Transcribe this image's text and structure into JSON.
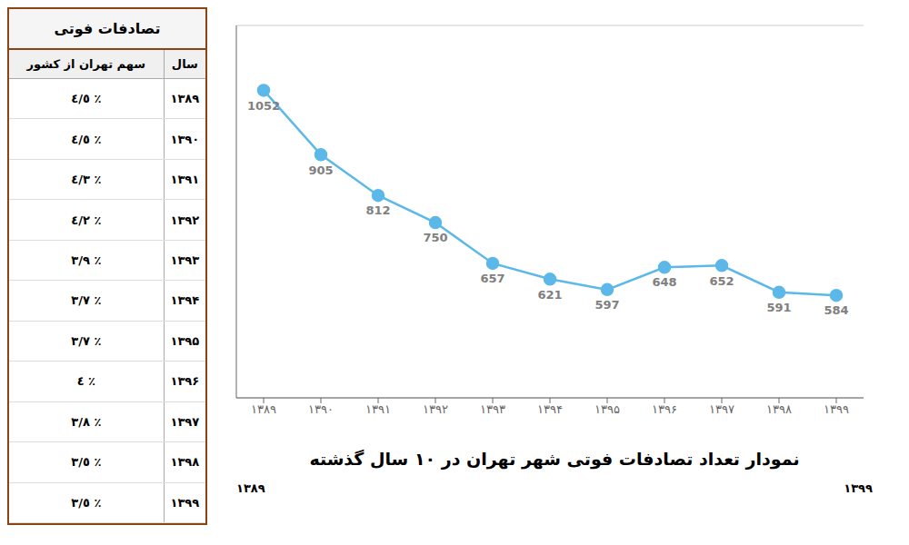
{
  "chart_data": [
    {
      "type": "table",
      "title": "تصادفات فوتی",
      "columns": [
        "سال",
        "سهم تهران از کشور"
      ],
      "rows": [
        [
          "۱۳۸۹",
          "٪ ٤/٥"
        ],
        [
          "۱۳۹۰",
          "٪ ٤/٥"
        ],
        [
          "۱۳۹۱",
          "٪ ٤/٣"
        ],
        [
          "۱۳۹۲",
          "٪ ٤/٢"
        ],
        [
          "۱۳۹۳",
          "٪ ٣/٩"
        ],
        [
          "۱۳۹۴",
          "٪ ٣/٧"
        ],
        [
          "۱۳۹۵",
          "٪ ٣/٧"
        ],
        [
          "۱۳۹۶",
          "٪ ٤"
        ],
        [
          "۱۳۹۷",
          "٪ ٣/٨"
        ],
        [
          "۱۳۹۸",
          "٪ ٣/٥"
        ],
        [
          "۱۳۹۹",
          "٪ ٣/٥"
        ]
      ]
    },
    {
      "type": "line",
      "title": "نمودار تعداد تصادفات فوتی شهر تهران در ۱۰ سال گذشته",
      "categories": [
        "۱۳۸۹",
        "۱۳۹۰",
        "۱۳۹۱",
        "۱۳۹۲",
        "۱۳۹۳",
        "۱۳۹۴",
        "۱۳۹۵",
        "۱۳۹۶",
        "۱۳۹۷",
        "۱۳۹۸",
        "۱۳۹۹"
      ],
      "values": [
        1052,
        905,
        812,
        750,
        657,
        621,
        597,
        648,
        652,
        591,
        584
      ],
      "color": "#5bb8e8",
      "ylim": [
        350,
        1200
      ],
      "yticks": [
        400,
        500,
        600,
        700,
        800,
        900,
        1000,
        1100
      ],
      "grid": true,
      "data_labels": true,
      "tick_labels": "x",
      "annotations": [
        "۱۳۸۹",
        "۱۳۹۹"
      ]
    }
  ]
}
